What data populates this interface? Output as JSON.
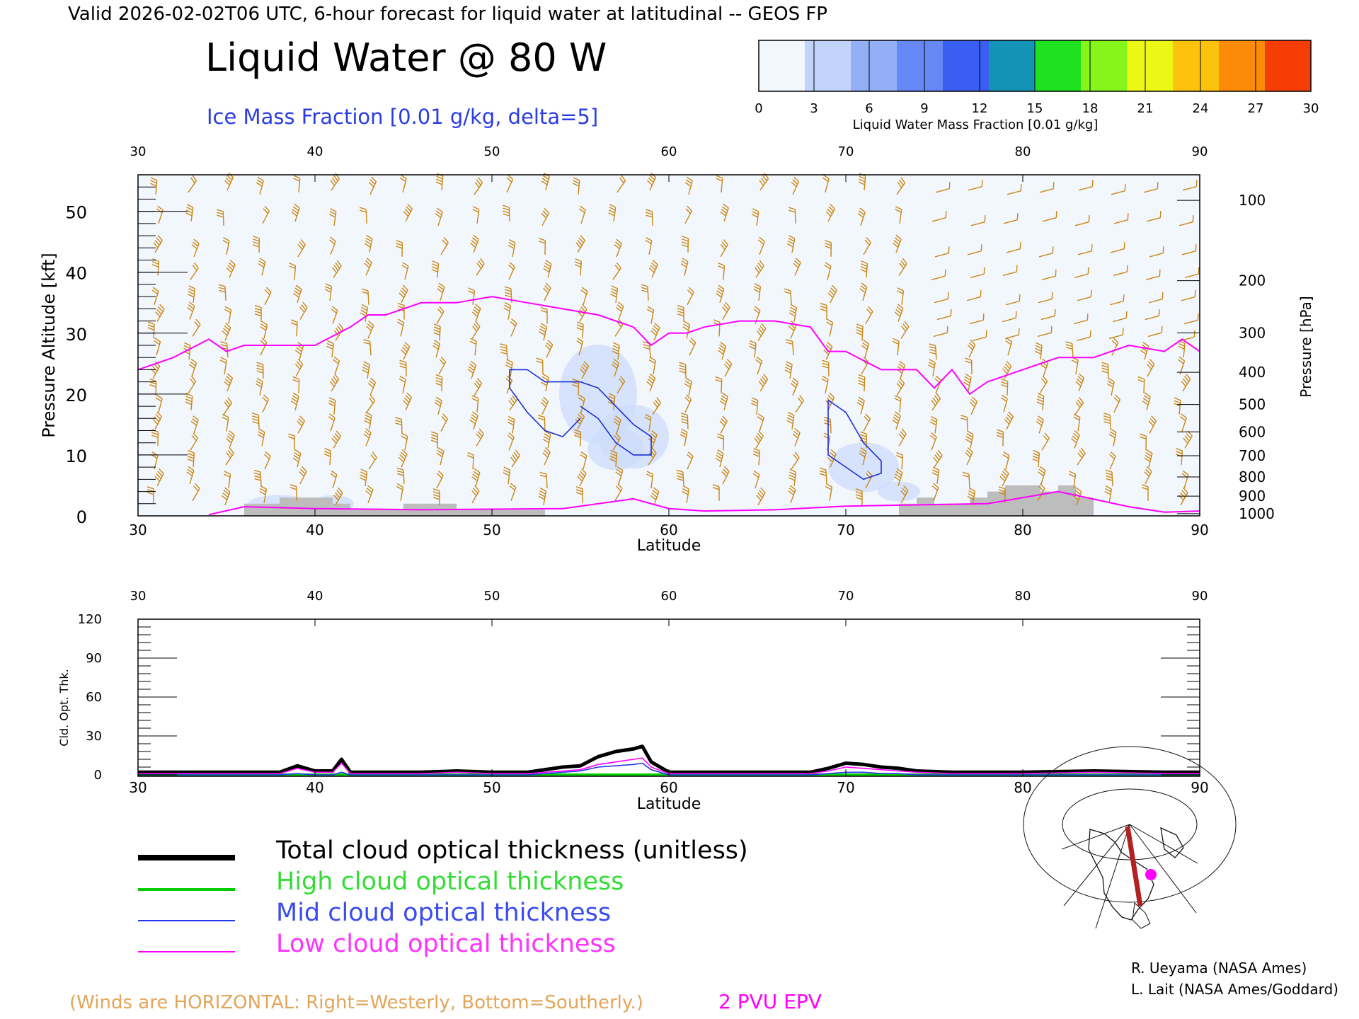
{
  "header": {
    "valid_line": "Valid 2026-02-02T06 UTC, 6-hour forecast for liquid water at latitudinal -- GEOS FP",
    "title": "Liquid Water @ 80 W",
    "subtitle": "Ice Mass Fraction [0.01 g/kg, delta=5]"
  },
  "colorbar": {
    "label": "Liquid Water Mass Fraction [0.01 g/kg]",
    "ticks": [
      "0",
      "3",
      "6",
      "9",
      "12",
      "15",
      "18",
      "21",
      "24",
      "27",
      "30"
    ],
    "colors": [
      "#f2f6fd",
      "#c3d4fa",
      "#93b0f6",
      "#6688f4",
      "#3a5ef0",
      "#1393b6",
      "#1fe11f",
      "#86f51a",
      "#ecf715",
      "#fdc20b",
      "#fc8c08",
      "#f63e04"
    ]
  },
  "colors": {
    "tropopause": "#ff00ff",
    "ice_contour": "#1f2fd6",
    "winds": "#c98814",
    "terrain": "#bdbdbd",
    "total": "#000000",
    "high": "#00cc00",
    "mid": "#2236ee",
    "low": "#ff00ff"
  },
  "top_panel": {
    "x_ticks": [
      "30",
      "40",
      "50",
      "60",
      "70",
      "80",
      "90"
    ],
    "xlabel": "Latitude",
    "ylabel_left": "Pressure Altitude [kft]",
    "y_ticks_left": [
      "0",
      "10",
      "20",
      "30",
      "40",
      "50"
    ],
    "ylabel_right": "Pressure [hPa]",
    "y_ticks_right": [
      "100",
      "200",
      "300",
      "400",
      "500",
      "600",
      "700",
      "800",
      "900",
      "1000"
    ]
  },
  "bottom_panel": {
    "x_ticks": [
      "30",
      "40",
      "50",
      "60",
      "70",
      "80",
      "90"
    ],
    "xlabel": "Latitude",
    "ylabel": "Cld. Opt. Thk.",
    "y_ticks": [
      "0",
      "30",
      "60",
      "90",
      "120"
    ]
  },
  "legend": {
    "total": "Total cloud optical thickness (unitless)",
    "high": "High cloud optical thickness",
    "mid": "Mid cloud optical thickness",
    "low": "Low cloud optical thickness"
  },
  "footer": {
    "winds_note": "(Winds are HORIZONTAL: Right=Westerly, Bottom=Southerly.)",
    "pvu": "2 PVU EPV",
    "credit1": "R. Ueyama (NASA Ames)",
    "credit2": "L. Lait (NASA Ames/Goddard)"
  },
  "chart_data": [
    {
      "type": "line",
      "panel": "cross-section",
      "title": "Liquid Water @ 80 W",
      "xlabel": "Latitude",
      "ylabel": "Pressure Altitude [kft]",
      "xlim": [
        30,
        90
      ],
      "ylim": [
        0,
        56
      ],
      "y2_label": "Pressure [hPa]",
      "y2_ticks": [
        100,
        200,
        300,
        400,
        500,
        600,
        700,
        800,
        900,
        1000
      ],
      "series": [
        {
          "name": "2 PVU EPV",
          "x": [
            30,
            32,
            34,
            35,
            36,
            38,
            40,
            42,
            43,
            44,
            45,
            46,
            48,
            50,
            52,
            54,
            56,
            58,
            59,
            60,
            61,
            62,
            64,
            66,
            68,
            69,
            70,
            72,
            74,
            75,
            76,
            77,
            78,
            80,
            82,
            84,
            86,
            88,
            89,
            90
          ],
          "y": [
            24,
            26,
            29,
            27,
            28,
            28,
            28,
            31,
            33,
            33,
            34,
            35,
            35,
            36,
            35,
            34,
            33,
            31,
            28,
            30,
            30,
            31,
            32,
            32,
            31,
            27,
            27,
            24,
            24,
            21,
            24,
            20,
            22,
            24,
            26,
            26,
            28,
            27,
            29,
            27
          ]
        }
      ],
      "terrain_kft": {
        "x": [
          36,
          37,
          38,
          39,
          40,
          41,
          42,
          43,
          44,
          45,
          46,
          47,
          48,
          49,
          50,
          51,
          52,
          73,
          74,
          75,
          76,
          77,
          78,
          79,
          80,
          81,
          82,
          83
        ],
        "y": [
          2,
          2,
          3,
          3,
          3,
          2,
          1,
          1,
          1,
          2,
          2,
          2,
          1,
          1,
          1,
          1,
          1,
          2,
          3,
          2,
          2,
          3,
          4,
          5,
          5,
          4,
          5,
          3
        ]
      },
      "ice_mass_fraction_contours": [
        {
          "level": 5,
          "lat": [
            55,
            56,
            57,
            58,
            59,
            59,
            58,
            57,
            56,
            55,
            54,
            53,
            52,
            51,
            51,
            52,
            53,
            54,
            55
          ],
          "kft": [
            18,
            16,
            12,
            10,
            10,
            13,
            15,
            18,
            21,
            22,
            22,
            22,
            24,
            24,
            21,
            17,
            14,
            13,
            16
          ]
        },
        {
          "level": 5,
          "lat": [
            69,
            70,
            71,
            72,
            72,
            71,
            70,
            69,
            69
          ],
          "kft": [
            19,
            17,
            12,
            9,
            7,
            6,
            8,
            10,
            19
          ]
        }
      ]
    },
    {
      "type": "line",
      "panel": "cloud optical thickness",
      "xlabel": "Latitude",
      "ylabel": "Cld. Opt. Thk.",
      "xlim": [
        30,
        90
      ],
      "ylim": [
        0,
        120
      ],
      "x": [
        30,
        34,
        38,
        39,
        40,
        41,
        41.5,
        42,
        44,
        46,
        48,
        50,
        52,
        54,
        55,
        56,
        57,
        58,
        58.5,
        59,
        60,
        62,
        66,
        68,
        69,
        70,
        71,
        72,
        73,
        74,
        76,
        80,
        84,
        88,
        90
      ],
      "series": [
        {
          "name": "Total cloud optical thickness (unitless)",
          "values": [
            2,
            2,
            2,
            7,
            3,
            3,
            12,
            2,
            2,
            2,
            3,
            2,
            2,
            6,
            7,
            14,
            18,
            20,
            22,
            10,
            2,
            2,
            2,
            2,
            5,
            9,
            8,
            6,
            5,
            3,
            2,
            2,
            3,
            2,
            2
          ]
        },
        {
          "name": "High cloud optical thickness",
          "values": [
            0,
            0,
            0,
            0,
            0,
            0,
            0,
            0,
            0,
            0,
            0,
            0,
            0,
            0,
            0,
            0,
            0,
            0,
            0,
            0,
            0,
            0,
            0,
            0,
            0,
            0,
            0,
            0,
            0,
            0,
            0,
            0,
            0,
            0,
            0
          ]
        },
        {
          "name": "Mid cloud optical thickness",
          "values": [
            0,
            0,
            0,
            1,
            0,
            0,
            2,
            0,
            0,
            0,
            0,
            0,
            0,
            2,
            3,
            6,
            7,
            8,
            9,
            4,
            0,
            0,
            0,
            0,
            1,
            2,
            2,
            1,
            1,
            0,
            0,
            0,
            0,
            0,
            0
          ]
        },
        {
          "name": "Low cloud optical thickness",
          "values": [
            1,
            1,
            1,
            5,
            2,
            2,
            9,
            1,
            1,
            1,
            2,
            1,
            1,
            3,
            4,
            8,
            10,
            12,
            13,
            6,
            1,
            1,
            1,
            1,
            3,
            6,
            5,
            4,
            3,
            2,
            1,
            1,
            2,
            1,
            1
          ]
        }
      ]
    }
  ]
}
